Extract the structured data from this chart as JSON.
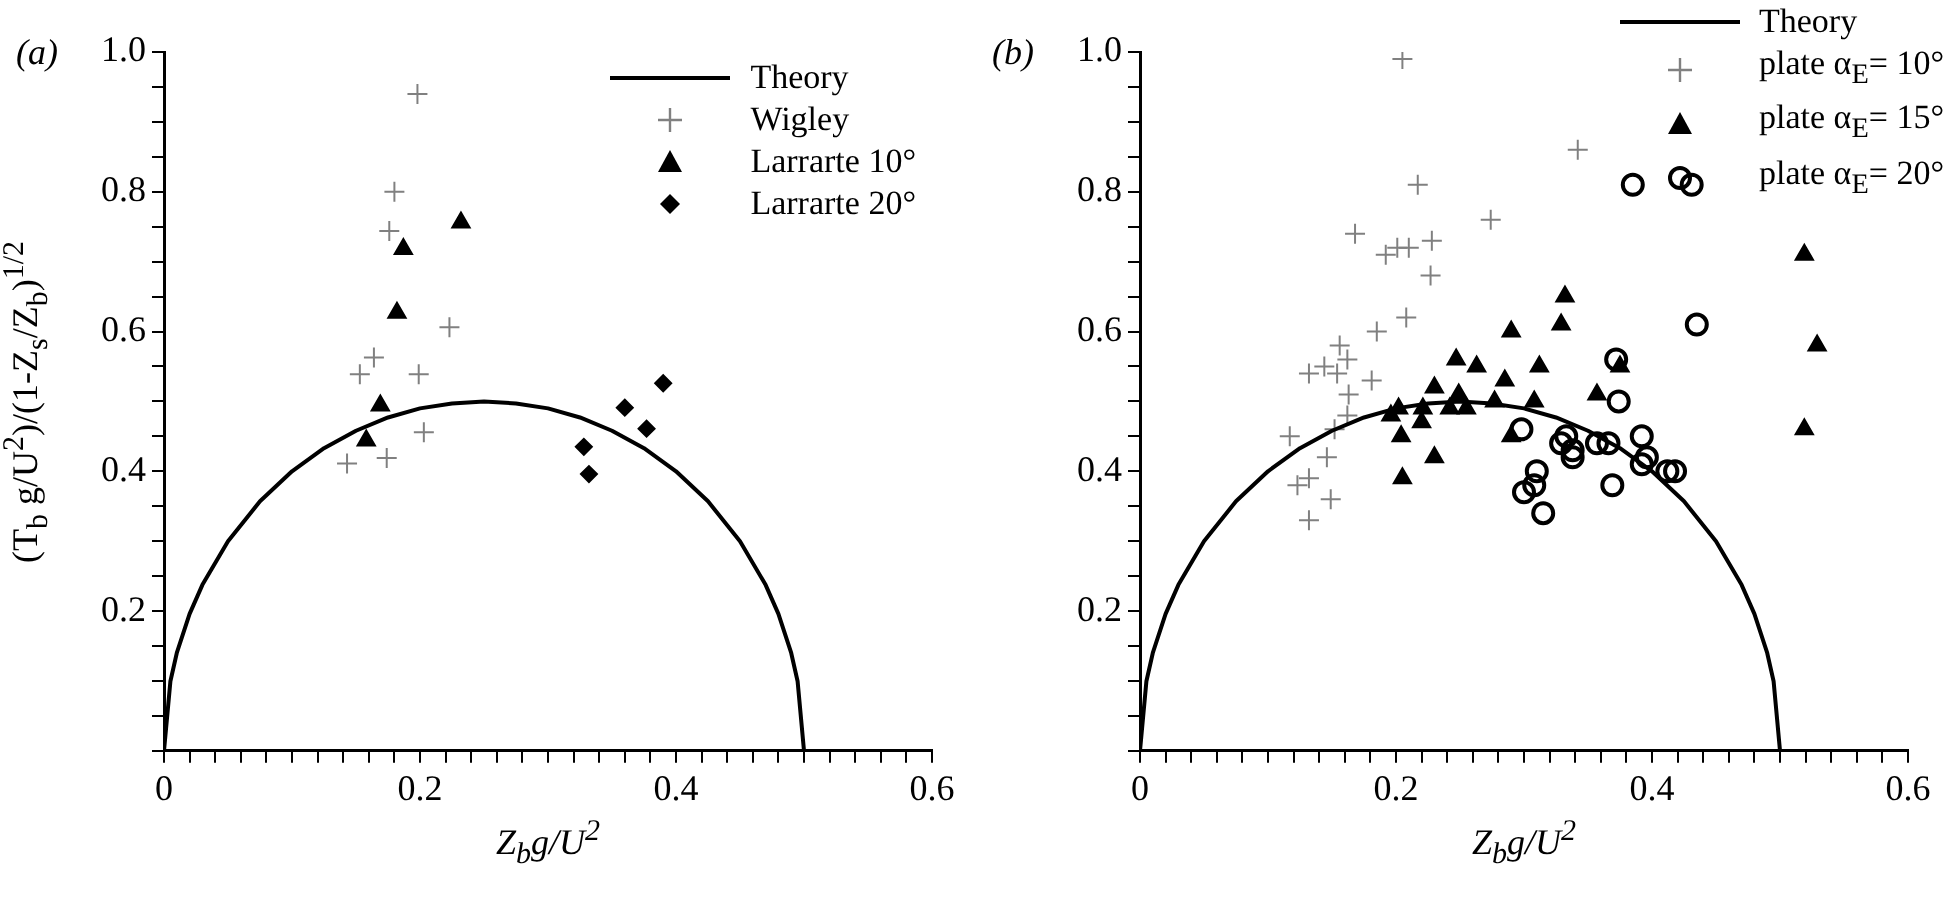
{
  "chart_data": [
    {
      "type": "scatter",
      "annotations": [
        "(a)"
      ],
      "xlabel": "Z$_{b}$g/U$^{2}$",
      "ylabel": "(T$_{b}$ g/U$^{2}$)/(1-Z$_{s}$/Z$_{b}$)$^{1/2}$",
      "legend": "top right",
      "grid": false,
      "xlim": [
        0,
        0.6
      ],
      "ylim": [
        0,
        1
      ],
      "xticks": [
        0,
        {
          "value": 0.02,
          "label": null
        },
        {
          "value": 0.04,
          "label": null
        },
        {
          "value": 0.06,
          "label": null
        },
        {
          "value": 0.08,
          "label": null
        },
        {
          "value": 0.1,
          "label": null
        },
        {
          "value": 0.12,
          "label": null
        },
        {
          "value": 0.14,
          "label": null
        },
        {
          "value": 0.16,
          "label": null
        },
        {
          "value": 0.18,
          "label": null
        },
        0.2,
        {
          "value": 0.22,
          "label": null
        },
        {
          "value": 0.24,
          "label": null
        },
        {
          "value": 0.26,
          "label": null
        },
        {
          "value": 0.28,
          "label": null
        },
        {
          "value": 0.3,
          "label": null
        },
        {
          "value": 0.32,
          "label": null
        },
        {
          "value": 0.34,
          "label": null
        },
        {
          "value": 0.36,
          "label": null
        },
        {
          "value": 0.38,
          "label": null
        },
        0.4,
        {
          "value": 0.42,
          "label": null
        },
        {
          "value": 0.44,
          "label": null
        },
        {
          "value": 0.46,
          "label": null
        },
        {
          "value": 0.48,
          "label": null
        },
        {
          "value": 0.5,
          "label": null
        },
        {
          "value": 0.52,
          "label": null
        },
        {
          "value": 0.54,
          "label": null
        },
        {
          "value": 0.56,
          "label": null
        },
        {
          "value": 0.58,
          "label": null
        },
        0.6
      ],
      "yticks": [
        {
          "value": 0,
          "label": null
        },
        {
          "value": 0.05,
          "label": null
        },
        {
          "value": 0.1,
          "label": null
        },
        {
          "value": 0.15,
          "label": null
        },
        0.2,
        {
          "value": 0.25,
          "label": null
        },
        {
          "value": 0.3,
          "label": null
        },
        {
          "value": 0.35,
          "label": null
        },
        0.4,
        {
          "value": 0.45,
          "label": null
        },
        {
          "value": 0.5,
          "label": null
        },
        {
          "value": 0.55,
          "label": null
        },
        0.6,
        {
          "value": 0.65,
          "label": null
        },
        {
          "value": 0.7,
          "label": null
        },
        {
          "value": 0.75,
          "label": null
        },
        0.8,
        {
          "value": 0.85,
          "label": null
        },
        {
          "value": 0.9,
          "label": null
        },
        {
          "value": 0.95,
          "label": null
        },
        {
          "value": 1,
          "label": "1.0"
        }
      ],
      "series": [
        {
          "name": "Theory",
          "type": "line",
          "color": "#000000",
          "marker": "none",
          "x": [
            0,
            0.005,
            0.01,
            0.02,
            0.03,
            0.05,
            0.075,
            0.1,
            0.125,
            0.15,
            0.175,
            0.2,
            0.225,
            0.25,
            0.275,
            0.3,
            0.325,
            0.35,
            0.375,
            0.4,
            0.425,
            0.45,
            0.47,
            0.48,
            0.49,
            0.495,
            0.5
          ],
          "values": [
            0,
            0.0995,
            0.14,
            0.196,
            0.2375,
            0.3,
            0.357,
            0.4,
            0.433,
            0.458,
            0.477,
            0.49,
            0.497,
            0.5,
            0.497,
            0.49,
            0.477,
            0.458,
            0.433,
            0.4,
            0.357,
            0.3,
            0.2375,
            0.196,
            0.14,
            0.0995,
            0
          ]
        },
        {
          "name": "Wigley",
          "color": "#808080",
          "marker": "cross",
          "x": [
            0.198,
            0.18,
            0.176,
            0.223,
            0.164,
            0.153,
            0.199,
            0.203,
            0.174,
            0.143
          ],
          "values": [
            0.94,
            0.8,
            0.744,
            0.606,
            0.563,
            0.539,
            0.539,
            0.456,
            0.419,
            0.411
          ]
        },
        {
          "name": "Larrarte 10°",
          "color": "#000000",
          "marker": "triangle",
          "x": [
            0.232,
            0.187,
            0.182,
            0.169,
            0.158
          ],
          "values": [
            0.756,
            0.718,
            0.627,
            0.494,
            0.444
          ]
        },
        {
          "name": "Larrarte 20°",
          "color": "#000000",
          "marker": "diamond",
          "x": [
            0.39,
            0.36,
            0.377,
            0.328,
            0.332
          ],
          "values": [
            0.526,
            0.491,
            0.461,
            0.435,
            0.396
          ]
        }
      ]
    },
    {
      "type": "scatter",
      "annotations": [
        "(b)"
      ],
      "xlabel": "Z$_{b}$g/U$^{2}$",
      "legend": "top right",
      "grid": false,
      "xlim": [
        0,
        0.6
      ],
      "ylim": [
        0,
        1
      ],
      "xticks": [
        0,
        {
          "value": 0.02,
          "label": null
        },
        {
          "value": 0.04,
          "label": null
        },
        {
          "value": 0.06,
          "label": null
        },
        {
          "value": 0.08,
          "label": null
        },
        {
          "value": 0.1,
          "label": null
        },
        {
          "value": 0.12,
          "label": null
        },
        {
          "value": 0.14,
          "label": null
        },
        {
          "value": 0.16,
          "label": null
        },
        {
          "value": 0.18,
          "label": null
        },
        0.2,
        {
          "value": 0.22,
          "label": null
        },
        {
          "value": 0.24,
          "label": null
        },
        {
          "value": 0.26,
          "label": null
        },
        {
          "value": 0.28,
          "label": null
        },
        {
          "value": 0.3,
          "label": null
        },
        {
          "value": 0.32,
          "label": null
        },
        {
          "value": 0.34,
          "label": null
        },
        {
          "value": 0.36,
          "label": null
        },
        {
          "value": 0.38,
          "label": null
        },
        0.4,
        {
          "value": 0.42,
          "label": null
        },
        {
          "value": 0.44,
          "label": null
        },
        {
          "value": 0.46,
          "label": null
        },
        {
          "value": 0.48,
          "label": null
        },
        {
          "value": 0.5,
          "label": null
        },
        {
          "value": 0.52,
          "label": null
        },
        {
          "value": 0.54,
          "label": null
        },
        {
          "value": 0.56,
          "label": null
        },
        {
          "value": 0.58,
          "label": null
        },
        0.6
      ],
      "yticks": [
        {
          "value": 0,
          "label": null
        },
        {
          "value": 0.05,
          "label": null
        },
        {
          "value": 0.1,
          "label": null
        },
        {
          "value": 0.15,
          "label": null
        },
        0.2,
        {
          "value": 0.25,
          "label": null
        },
        {
          "value": 0.3,
          "label": null
        },
        {
          "value": 0.35,
          "label": null
        },
        0.4,
        {
          "value": 0.45,
          "label": null
        },
        {
          "value": 0.5,
          "label": null
        },
        {
          "value": 0.55,
          "label": null
        },
        0.6,
        {
          "value": 0.65,
          "label": null
        },
        {
          "value": 0.7,
          "label": null
        },
        {
          "value": 0.75,
          "label": null
        },
        0.8,
        {
          "value": 0.85,
          "label": null
        },
        {
          "value": 0.9,
          "label": null
        },
        {
          "value": 0.95,
          "label": null
        },
        {
          "value": 1,
          "label": "1.0"
        }
      ],
      "series": [
        {
          "name": "Theory",
          "type": "line",
          "color": "#000000",
          "marker": "none",
          "x": [
            0,
            0.005,
            0.01,
            0.02,
            0.03,
            0.05,
            0.075,
            0.1,
            0.125,
            0.15,
            0.175,
            0.2,
            0.225,
            0.25,
            0.275,
            0.3,
            0.325,
            0.35,
            0.375,
            0.4,
            0.425,
            0.45,
            0.47,
            0.48,
            0.49,
            0.495,
            0.5
          ],
          "values": [
            0,
            0.0995,
            0.14,
            0.196,
            0.2375,
            0.3,
            0.357,
            0.4,
            0.433,
            0.458,
            0.477,
            0.49,
            0.497,
            0.5,
            0.497,
            0.49,
            0.477,
            0.458,
            0.433,
            0.4,
            0.357,
            0.3,
            0.2375,
            0.196,
            0.14,
            0.0995,
            0
          ]
        },
        {
          "name": "plate α$_{E}$= 10°",
          "color": "#808080",
          "marker": "cross",
          "x": [
            0.205,
            0.342,
            0.217,
            0.274,
            0.168,
            0.228,
            0.192,
            0.201,
            0.21,
            0.227,
            0.208,
            0.185,
            0.156,
            0.132,
            0.144,
            0.154,
            0.162,
            0.181,
            0.163,
            0.162,
            0.152,
            0.117,
            0.146,
            0.132,
            0.123,
            0.149,
            0.132
          ],
          "values": [
            0.99,
            0.86,
            0.81,
            0.76,
            0.74,
            0.73,
            0.71,
            0.72,
            0.72,
            0.68,
            0.62,
            0.6,
            0.58,
            0.54,
            0.55,
            0.54,
            0.56,
            0.53,
            0.51,
            0.48,
            0.46,
            0.45,
            0.42,
            0.39,
            0.38,
            0.36,
            0.33
          ]
        },
        {
          "name": "plate α$_{E}$= 15°",
          "color": "#000000",
          "marker": "triangle",
          "x": [
            0.519,
            0.529,
            0.519,
            0.332,
            0.329,
            0.29,
            0.312,
            0.375,
            0.357,
            0.247,
            0.263,
            0.23,
            0.249,
            0.285,
            0.277,
            0.308,
            0.202,
            0.196,
            0.221,
            0.242,
            0.255,
            0.22,
            0.204,
            0.29,
            0.23,
            0.205
          ],
          "values": [
            0.71,
            0.58,
            0.46,
            0.65,
            0.61,
            0.6,
            0.55,
            0.55,
            0.51,
            0.56,
            0.55,
            0.52,
            0.51,
            0.53,
            0.5,
            0.5,
            0.49,
            0.48,
            0.49,
            0.49,
            0.49,
            0.47,
            0.45,
            0.45,
            0.42,
            0.39
          ]
        },
        {
          "name": "plate α$_{E}$= 20°",
          "color": "#000000",
          "marker": "circle",
          "x": [
            0.385,
            0.431,
            0.435,
            0.372,
            0.374,
            0.298,
            0.392,
            0.329,
            0.333,
            0.338,
            0.338,
            0.357,
            0.366,
            0.396,
            0.392,
            0.412,
            0.418,
            0.31,
            0.308,
            0.3,
            0.369,
            0.315
          ],
          "values": [
            0.81,
            0.81,
            0.61,
            0.56,
            0.5,
            0.46,
            0.45,
            0.44,
            0.45,
            0.43,
            0.42,
            0.44,
            0.44,
            0.42,
            0.41,
            0.4,
            0.4,
            0.4,
            0.38,
            0.37,
            0.38,
            0.34
          ]
        }
      ]
    }
  ]
}
